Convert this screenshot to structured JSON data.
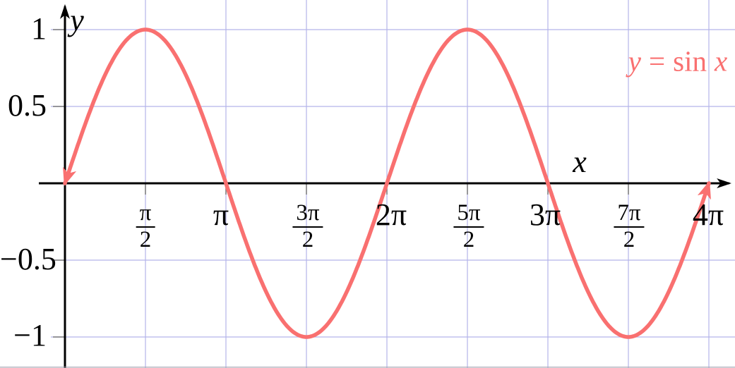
{
  "chart_data": {
    "type": "line",
    "title": "",
    "function": "y = sin(x)",
    "legend": {
      "lhs": "y",
      "eq": "=",
      "fn": "sin",
      "arg": "x",
      "text": "y = sin x"
    },
    "legend_position": "top-right",
    "axis_labels": {
      "x": "x",
      "y": "y"
    },
    "grid": true,
    "x_range_radians": [
      0,
      12.5664
    ],
    "ylim": [
      -1,
      1
    ],
    "amplitude": 1,
    "period_label": "2π",
    "series": [
      {
        "name": "y = sin x",
        "color": "#f97070",
        "key_points": [
          [
            0,
            0
          ],
          [
            1.5708,
            1
          ],
          [
            3.1416,
            0
          ],
          [
            4.7124,
            -1
          ],
          [
            6.2832,
            0
          ],
          [
            7.854,
            1
          ],
          [
            9.4248,
            0
          ],
          [
            10.9956,
            -1
          ],
          [
            12.5664,
            0
          ]
        ]
      }
    ],
    "x_ticks": [
      {
        "value": 1.5708,
        "display": "π/2",
        "num": "π",
        "den": "2"
      },
      {
        "value": 3.1416,
        "display": "π",
        "label": "π"
      },
      {
        "value": 4.7124,
        "display": "3π/2",
        "num": "3π",
        "den": "2"
      },
      {
        "value": 6.2832,
        "display": "2π",
        "label": "2π"
      },
      {
        "value": 7.854,
        "display": "5π/2",
        "num": "5π",
        "den": "2"
      },
      {
        "value": 9.4248,
        "display": "3π",
        "label": "3π"
      },
      {
        "value": 10.9956,
        "display": "7π/2",
        "num": "7π",
        "den": "2"
      },
      {
        "value": 12.5664,
        "display": "4π",
        "label": "4π"
      }
    ],
    "y_ticks": [
      {
        "value": 1,
        "label": "1"
      },
      {
        "value": 0.5,
        "label": "0.5"
      },
      {
        "value": -0.5,
        "label": "−0.5"
      },
      {
        "value": -1,
        "label": "−1"
      }
    ],
    "colors": {
      "curve": "#f97070",
      "grid": "#b4b4ea",
      "axis": "#000000",
      "tick": "#7a7a7a",
      "text": "#000000",
      "background": "#ffffff",
      "bottom_edge": "#a3a3b0"
    }
  }
}
